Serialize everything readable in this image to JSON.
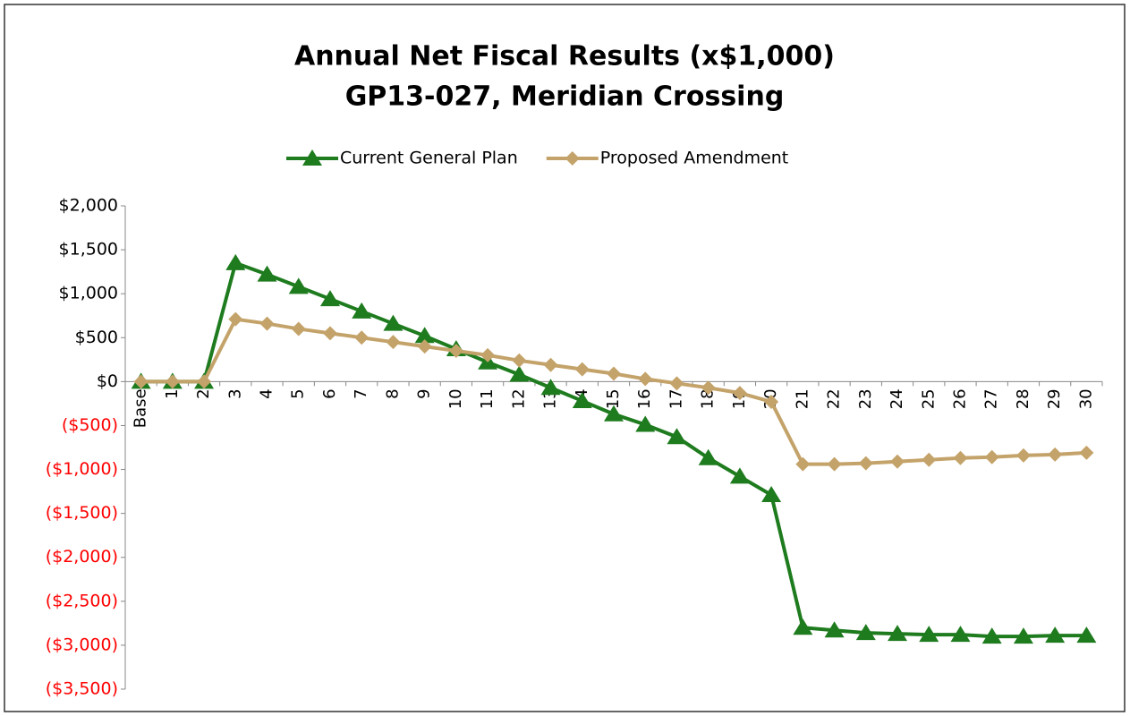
{
  "chart_data": {
    "type": "line",
    "title": "Annual Net Fiscal Results (x$1,000)",
    "subtitle": "GP13-027, Meridian Crossing",
    "categories": [
      "Base",
      "1",
      "2",
      "3",
      "4",
      "5",
      "6",
      "7",
      "8",
      "9",
      "10",
      "11",
      "12",
      "13",
      "14",
      "15",
      "16",
      "17",
      "18",
      "19",
      "20",
      "21",
      "22",
      "23",
      "24",
      "25",
      "26",
      "27",
      "28",
      "29",
      "30"
    ],
    "series": [
      {
        "name": "Current General Plan",
        "color": "#1e7b1e",
        "marker": "triangle",
        "values": [
          0,
          0,
          0,
          1350,
          1220,
          1080,
          940,
          800,
          660,
          520,
          370,
          220,
          80,
          -70,
          -220,
          -370,
          -490,
          -630,
          -870,
          -1080,
          -1290,
          -2800,
          -2830,
          -2860,
          -2870,
          -2880,
          -2880,
          -2900,
          -2900,
          -2890,
          -2890
        ]
      },
      {
        "name": "Proposed Amendment",
        "color": "#c4a36a",
        "marker": "diamond",
        "values": [
          0,
          0,
          0,
          710,
          660,
          600,
          550,
          500,
          450,
          400,
          350,
          300,
          240,
          190,
          140,
          90,
          30,
          -20,
          -70,
          -130,
          -230,
          -940,
          -940,
          -930,
          -910,
          -890,
          -870,
          -860,
          -840,
          -830,
          -810
        ]
      }
    ],
    "ylim": [
      -3500,
      2000
    ],
    "yticks": [
      {
        "value": 2000,
        "label": "$2,000"
      },
      {
        "value": 1500,
        "label": "$1,500"
      },
      {
        "value": 1000,
        "label": "$1,000"
      },
      {
        "value": 500,
        "label": "$500"
      },
      {
        "value": 0,
        "label": "$0"
      },
      {
        "value": -500,
        "label": "($500)"
      },
      {
        "value": -1000,
        "label": "($1,000)"
      },
      {
        "value": -1500,
        "label": "($1,500)"
      },
      {
        "value": -2000,
        "label": "($2,000)"
      },
      {
        "value": -2500,
        "label": "($2,500)"
      },
      {
        "value": -3000,
        "label": "($3,000)"
      },
      {
        "value": -3500,
        "label": "($3,500)"
      }
    ],
    "negative_tick_color": "#ff0000",
    "legend": "top",
    "grid": false
  }
}
